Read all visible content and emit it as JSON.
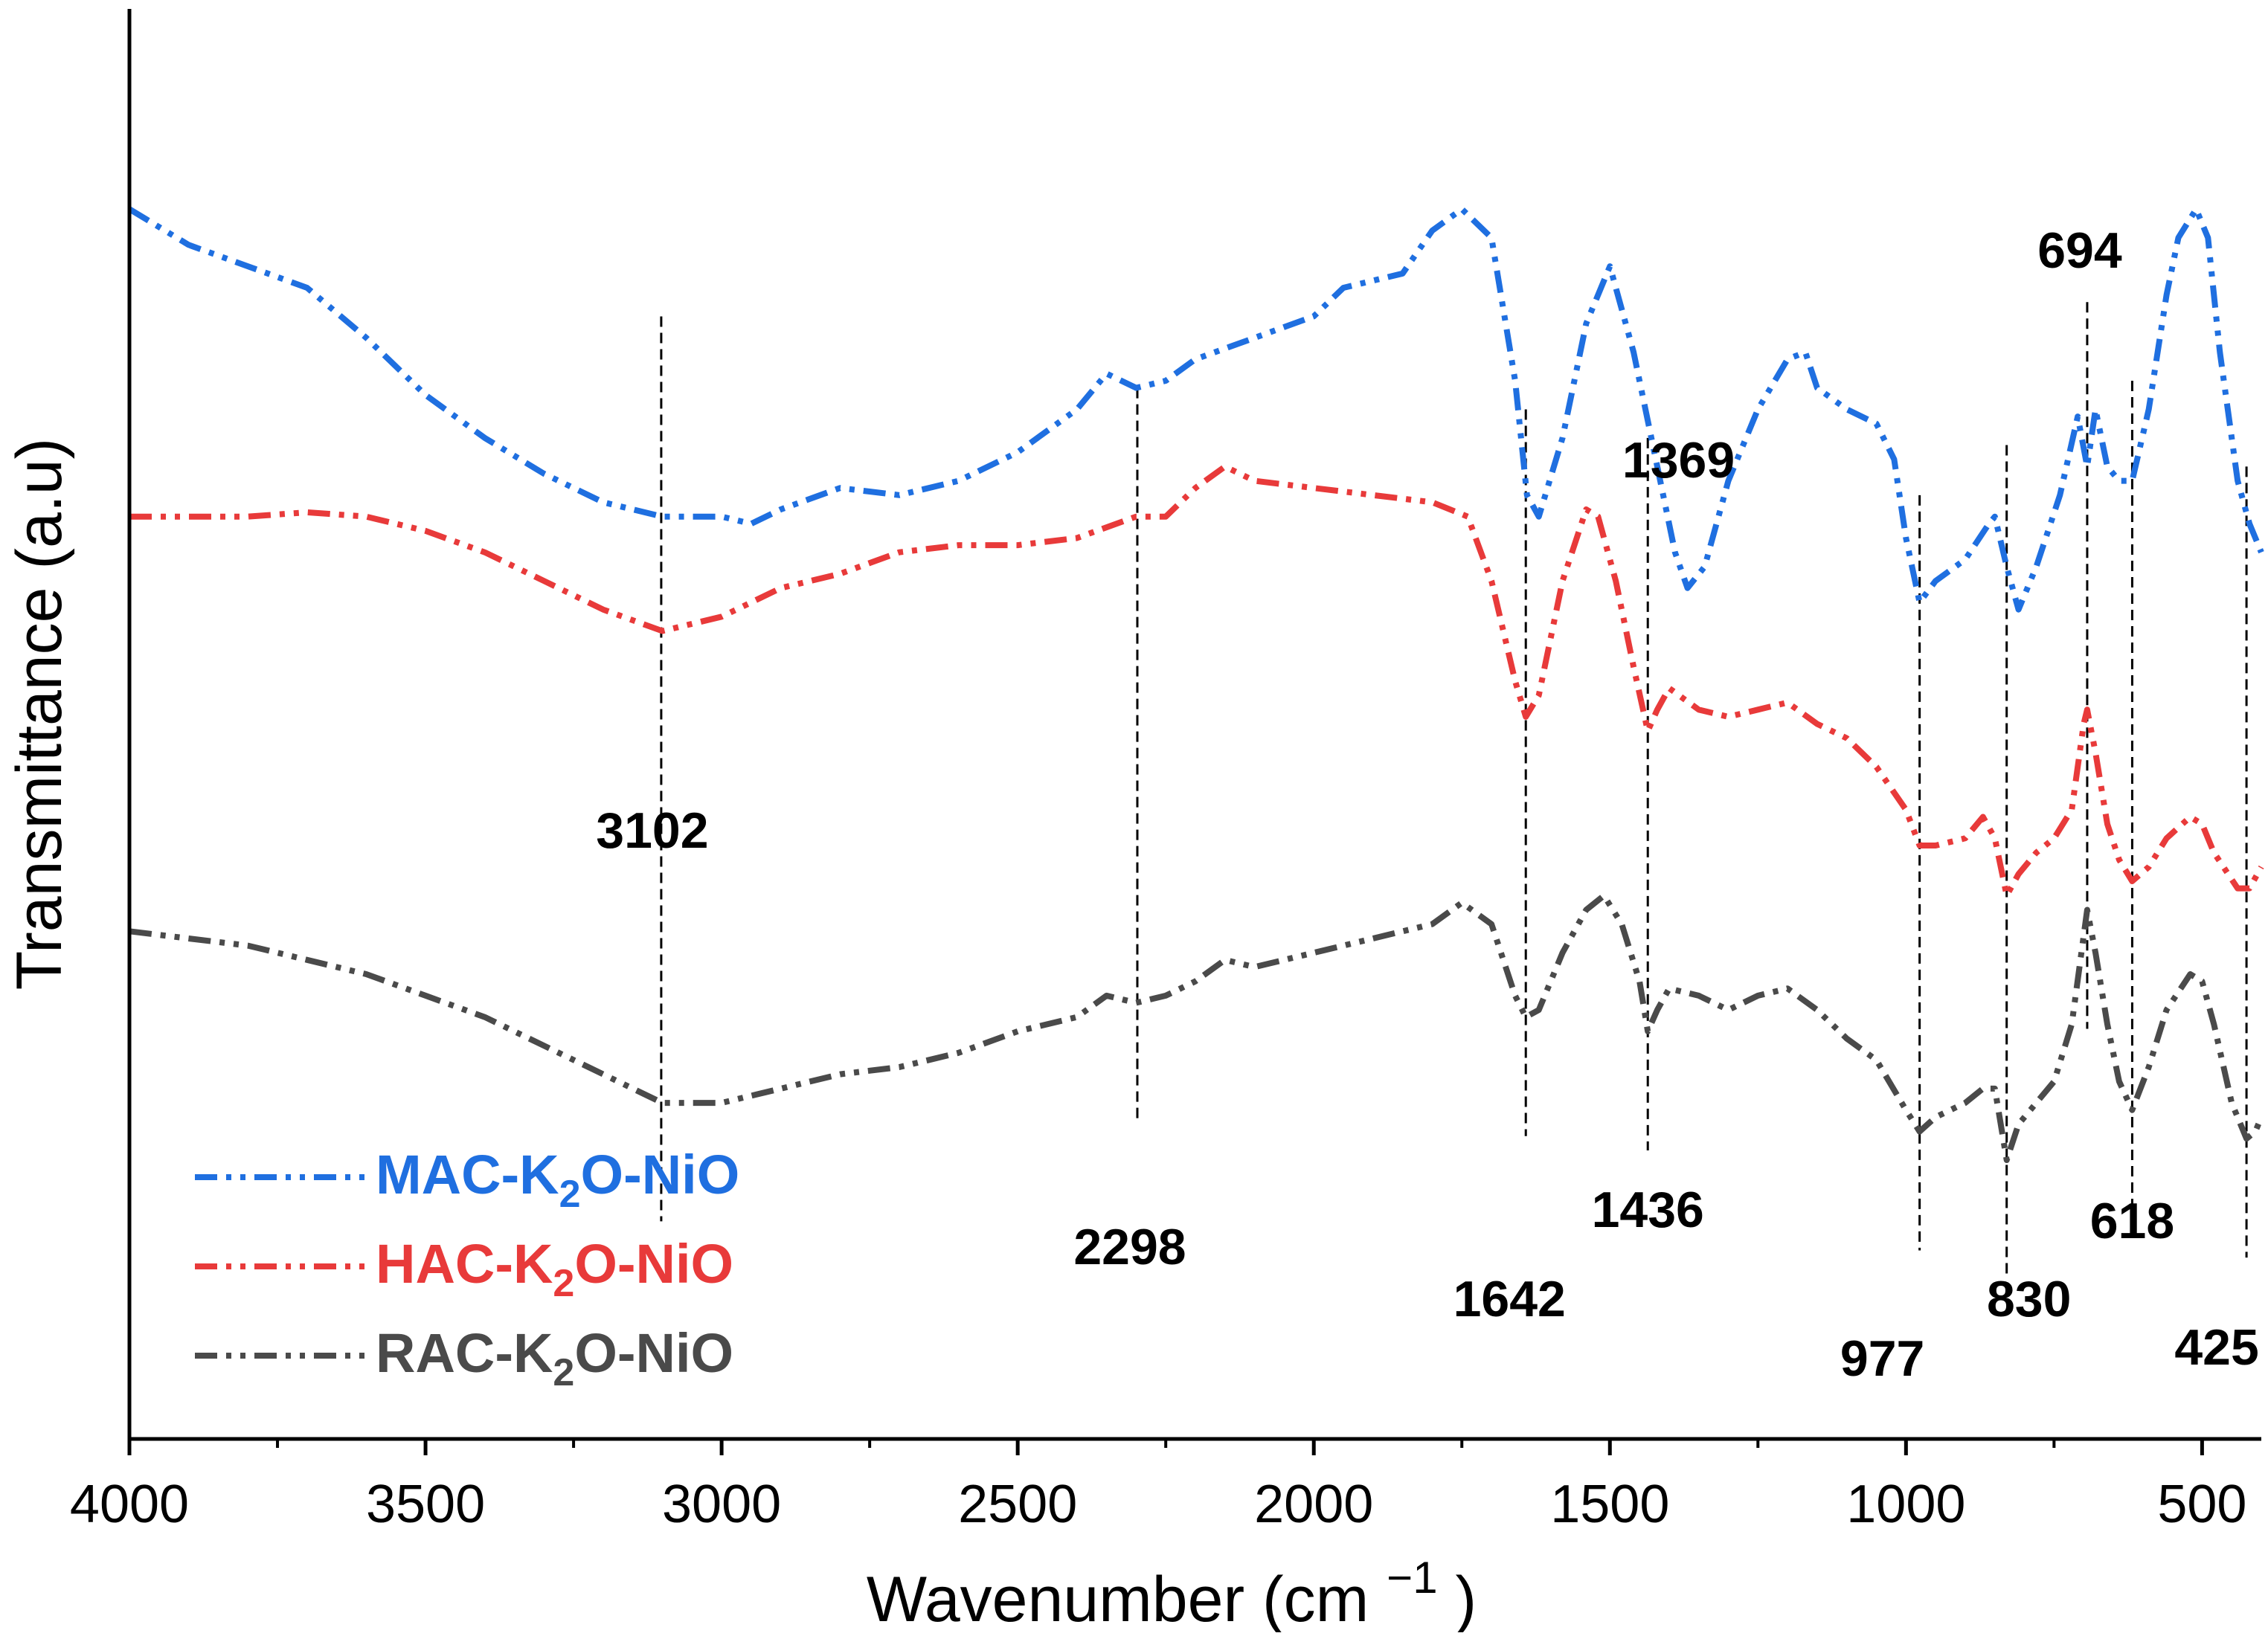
{
  "chart_data": {
    "type": "line",
    "title": "",
    "xlabel": "Wavenumber (cm",
    "xlabel_superscript": "−1",
    "xlabel_close": ")",
    "ylabel": "Transmittance (a.u)",
    "xlim": [
      4000,
      400
    ],
    "x_reversed": true,
    "x_ticks": [
      4000,
      3500,
      3000,
      2500,
      2000,
      1500,
      1000,
      500
    ],
    "x_tick_labels": [
      "4000",
      "3500",
      "3000",
      "2500",
      "2000",
      "1500",
      "1000",
      "500"
    ],
    "y_ticks_shown": false,
    "legend_position": "bottom-left",
    "line_style": "dash-dot-dot",
    "series": [
      {
        "name": "MAC-K2O-NiO",
        "label_prefix": "MAC-K",
        "label_sub": "2",
        "label_suffix": "O-NiO",
        "color": "#1f6fe0",
        "points": [
          [
            4000,
            0.86
          ],
          [
            3900,
            0.835
          ],
          [
            3800,
            0.82
          ],
          [
            3700,
            0.805
          ],
          [
            3600,
            0.77
          ],
          [
            3500,
            0.73
          ],
          [
            3400,
            0.7
          ],
          [
            3300,
            0.675
          ],
          [
            3200,
            0.655
          ],
          [
            3100,
            0.645
          ],
          [
            3000,
            0.645
          ],
          [
            2950,
            0.64
          ],
          [
            2900,
            0.65
          ],
          [
            2800,
            0.665
          ],
          [
            2700,
            0.66
          ],
          [
            2600,
            0.67
          ],
          [
            2500,
            0.69
          ],
          [
            2400,
            0.72
          ],
          [
            2350,
            0.745
          ],
          [
            2300,
            0.735
          ],
          [
            2250,
            0.74
          ],
          [
            2200,
            0.755
          ],
          [
            2100,
            0.77
          ],
          [
            2000,
            0.785
          ],
          [
            1950,
            0.805
          ],
          [
            1900,
            0.81
          ],
          [
            1850,
            0.815
          ],
          [
            1800,
            0.845
          ],
          [
            1750,
            0.86
          ],
          [
            1700,
            0.84
          ],
          [
            1660,
            0.74
          ],
          [
            1640,
            0.66
          ],
          [
            1620,
            0.645
          ],
          [
            1580,
            0.7
          ],
          [
            1540,
            0.78
          ],
          [
            1500,
            0.82
          ],
          [
            1460,
            0.76
          ],
          [
            1420,
            0.68
          ],
          [
            1390,
            0.62
          ],
          [
            1369,
            0.595
          ],
          [
            1340,
            0.61
          ],
          [
            1300,
            0.67
          ],
          [
            1250,
            0.72
          ],
          [
            1200,
            0.755
          ],
          [
            1170,
            0.76
          ],
          [
            1150,
            0.735
          ],
          [
            1100,
            0.72
          ],
          [
            1050,
            0.71
          ],
          [
            1020,
            0.685
          ],
          [
            1000,
            0.63
          ],
          [
            977,
            0.585
          ],
          [
            950,
            0.6
          ],
          [
            900,
            0.615
          ],
          [
            860,
            0.64
          ],
          [
            850,
            0.645
          ],
          [
            830,
            0.61
          ],
          [
            810,
            0.58
          ],
          [
            780,
            0.61
          ],
          [
            740,
            0.66
          ],
          [
            710,
            0.715
          ],
          [
            694,
            0.68
          ],
          [
            680,
            0.72
          ],
          [
            660,
            0.68
          ],
          [
            640,
            0.67
          ],
          [
            618,
            0.67
          ],
          [
            590,
            0.72
          ],
          [
            560,
            0.8
          ],
          [
            540,
            0.84
          ],
          [
            510,
            0.86
          ],
          [
            490,
            0.84
          ],
          [
            470,
            0.76
          ],
          [
            440,
            0.67
          ],
          [
            420,
            0.64
          ],
          [
            400,
            0.62
          ]
        ]
      },
      {
        "name": "HAC-K2O-NiO",
        "label_prefix": "HAC-K",
        "label_sub": "2",
        "label_suffix": "O-NiO",
        "color": "#e83a3a",
        "points": [
          [
            4000,
            0.645
          ],
          [
            3900,
            0.645
          ],
          [
            3800,
            0.645
          ],
          [
            3700,
            0.648
          ],
          [
            3600,
            0.645
          ],
          [
            3500,
            0.635
          ],
          [
            3400,
            0.62
          ],
          [
            3300,
            0.6
          ],
          [
            3200,
            0.58
          ],
          [
            3100,
            0.565
          ],
          [
            3000,
            0.575
          ],
          [
            2900,
            0.595
          ],
          [
            2800,
            0.605
          ],
          [
            2700,
            0.62
          ],
          [
            2600,
            0.625
          ],
          [
            2500,
            0.625
          ],
          [
            2400,
            0.63
          ],
          [
            2300,
            0.645
          ],
          [
            2250,
            0.645
          ],
          [
            2200,
            0.665
          ],
          [
            2150,
            0.68
          ],
          [
            2100,
            0.67
          ],
          [
            2000,
            0.665
          ],
          [
            1900,
            0.66
          ],
          [
            1800,
            0.655
          ],
          [
            1740,
            0.645
          ],
          [
            1700,
            0.6
          ],
          [
            1660,
            0.53
          ],
          [
            1642,
            0.505
          ],
          [
            1620,
            0.52
          ],
          [
            1580,
            0.6
          ],
          [
            1540,
            0.65
          ],
          [
            1520,
            0.645
          ],
          [
            1490,
            0.6
          ],
          [
            1460,
            0.54
          ],
          [
            1436,
            0.495
          ],
          [
            1420,
            0.51
          ],
          [
            1400,
            0.525
          ],
          [
            1350,
            0.51
          ],
          [
            1300,
            0.505
          ],
          [
            1250,
            0.51
          ],
          [
            1200,
            0.515
          ],
          [
            1150,
            0.5
          ],
          [
            1100,
            0.49
          ],
          [
            1050,
            0.47
          ],
          [
            1000,
            0.44
          ],
          [
            977,
            0.415
          ],
          [
            950,
            0.415
          ],
          [
            900,
            0.42
          ],
          [
            870,
            0.435
          ],
          [
            850,
            0.42
          ],
          [
            830,
            0.38
          ],
          [
            810,
            0.395
          ],
          [
            780,
            0.41
          ],
          [
            750,
            0.42
          ],
          [
            720,
            0.44
          ],
          [
            700,
            0.5
          ],
          [
            694,
            0.51
          ],
          [
            680,
            0.48
          ],
          [
            660,
            0.43
          ],
          [
            640,
            0.405
          ],
          [
            618,
            0.39
          ],
          [
            590,
            0.4
          ],
          [
            560,
            0.42
          ],
          [
            520,
            0.435
          ],
          [
            500,
            0.43
          ],
          [
            480,
            0.41
          ],
          [
            440,
            0.385
          ],
          [
            420,
            0.385
          ],
          [
            400,
            0.4
          ]
        ]
      },
      {
        "name": "RAC-K2O-NiO",
        "label_prefix": "RAC-K",
        "label_sub": "2",
        "label_suffix": "O-NiO",
        "color": "#4a4a4a",
        "points": [
          [
            4000,
            0.355
          ],
          [
            3900,
            0.35
          ],
          [
            3800,
            0.345
          ],
          [
            3700,
            0.335
          ],
          [
            3600,
            0.325
          ],
          [
            3500,
            0.31
          ],
          [
            3400,
            0.295
          ],
          [
            3300,
            0.275
          ],
          [
            3200,
            0.255
          ],
          [
            3100,
            0.235
          ],
          [
            3000,
            0.235
          ],
          [
            2900,
            0.245
          ],
          [
            2800,
            0.255
          ],
          [
            2700,
            0.26
          ],
          [
            2600,
            0.27
          ],
          [
            2500,
            0.285
          ],
          [
            2400,
            0.295
          ],
          [
            2350,
            0.31
          ],
          [
            2300,
            0.305
          ],
          [
            2250,
            0.31
          ],
          [
            2200,
            0.32
          ],
          [
            2150,
            0.335
          ],
          [
            2100,
            0.33
          ],
          [
            2000,
            0.34
          ],
          [
            1900,
            0.35
          ],
          [
            1800,
            0.36
          ],
          [
            1750,
            0.375
          ],
          [
            1700,
            0.36
          ],
          [
            1660,
            0.31
          ],
          [
            1642,
            0.295
          ],
          [
            1620,
            0.3
          ],
          [
            1580,
            0.34
          ],
          [
            1540,
            0.37
          ],
          [
            1510,
            0.38
          ],
          [
            1480,
            0.36
          ],
          [
            1450,
            0.32
          ],
          [
            1436,
            0.285
          ],
          [
            1420,
            0.3
          ],
          [
            1400,
            0.315
          ],
          [
            1350,
            0.31
          ],
          [
            1300,
            0.3
          ],
          [
            1250,
            0.31
          ],
          [
            1200,
            0.315
          ],
          [
            1150,
            0.3
          ],
          [
            1100,
            0.28
          ],
          [
            1050,
            0.265
          ],
          [
            1000,
            0.23
          ],
          [
            977,
            0.215
          ],
          [
            950,
            0.225
          ],
          [
            900,
            0.235
          ],
          [
            870,
            0.245
          ],
          [
            850,
            0.245
          ],
          [
            830,
            0.195
          ],
          [
            810,
            0.22
          ],
          [
            780,
            0.235
          ],
          [
            750,
            0.25
          ],
          [
            720,
            0.29
          ],
          [
            694,
            0.37
          ],
          [
            680,
            0.34
          ],
          [
            660,
            0.29
          ],
          [
            640,
            0.25
          ],
          [
            618,
            0.23
          ],
          [
            590,
            0.26
          ],
          [
            560,
            0.3
          ],
          [
            520,
            0.325
          ],
          [
            500,
            0.32
          ],
          [
            480,
            0.29
          ],
          [
            450,
            0.235
          ],
          [
            425,
            0.21
          ],
          [
            410,
            0.215
          ],
          [
            400,
            0.225
          ]
        ]
      }
    ],
    "annotations": [
      {
        "label": "3102",
        "x": 3102
      },
      {
        "label": "2298",
        "x": 2298
      },
      {
        "label": "1642",
        "x": 1642
      },
      {
        "label": "1436",
        "x": 1436
      },
      {
        "label": "1369",
        "x": 1369
      },
      {
        "label": "977",
        "x": 977
      },
      {
        "label": "830",
        "x": 830
      },
      {
        "label": "694",
        "x": 694
      },
      {
        "label": "618",
        "x": 618
      },
      {
        "label": "425",
        "x": 425
      }
    ]
  }
}
